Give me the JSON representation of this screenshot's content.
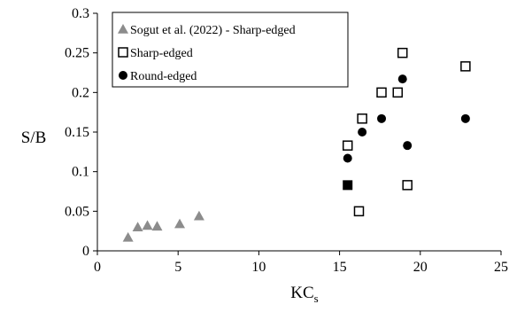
{
  "chart_data": {
    "type": "scatter",
    "title": "",
    "xlabel": {
      "main": "KC",
      "subscript": "s"
    },
    "ylabel": "S/B",
    "xlim": [
      0,
      25
    ],
    "ylim": [
      0,
      0.3
    ],
    "x_ticks": [
      0,
      5,
      10,
      15,
      20,
      25
    ],
    "y_ticks": [
      0,
      0.05,
      0.1,
      0.15,
      0.2,
      0.25,
      0.3
    ],
    "x_tick_labels": [
      "0",
      "5",
      "10",
      "15",
      "20",
      "25"
    ],
    "y_tick_labels": [
      "0",
      "0.05",
      "0.1",
      "0.15",
      "0.2",
      "0.25",
      "0.3"
    ],
    "grid": false,
    "legend_position": "top-left",
    "series": [
      {
        "name": "Sogut et al. (2022) - Sharp-edged",
        "marker": "triangle",
        "color": "#8c8c8c",
        "points": [
          [
            1.9,
            0.017
          ],
          [
            2.5,
            0.03
          ],
          [
            3.1,
            0.032
          ],
          [
            3.7,
            0.031
          ],
          [
            5.1,
            0.034
          ],
          [
            6.3,
            0.044
          ]
        ]
      },
      {
        "name": "Sharp-edged",
        "marker": "open-square",
        "color": "#000000",
        "points": [
          [
            15.5,
            0.133
          ],
          [
            16.2,
            0.05
          ],
          [
            16.4,
            0.167
          ],
          [
            17.6,
            0.2
          ],
          [
            18.6,
            0.2
          ],
          [
            18.9,
            0.25
          ],
          [
            19.2,
            0.083
          ],
          [
            22.8,
            0.233
          ]
        ]
      },
      {
        "name": "Round-edged",
        "marker": "filled-circle",
        "color": "#000000",
        "points": [
          [
            15.5,
            0.117
          ],
          [
            16.4,
            0.15
          ],
          [
            17.6,
            0.167
          ],
          [
            18.9,
            0.217
          ],
          [
            19.2,
            0.133
          ],
          [
            22.8,
            0.167
          ]
        ]
      }
    ],
    "extra_points": [
      {
        "marker": "filled-square",
        "color": "#000000",
        "x": 15.5,
        "y": 0.083
      }
    ]
  }
}
